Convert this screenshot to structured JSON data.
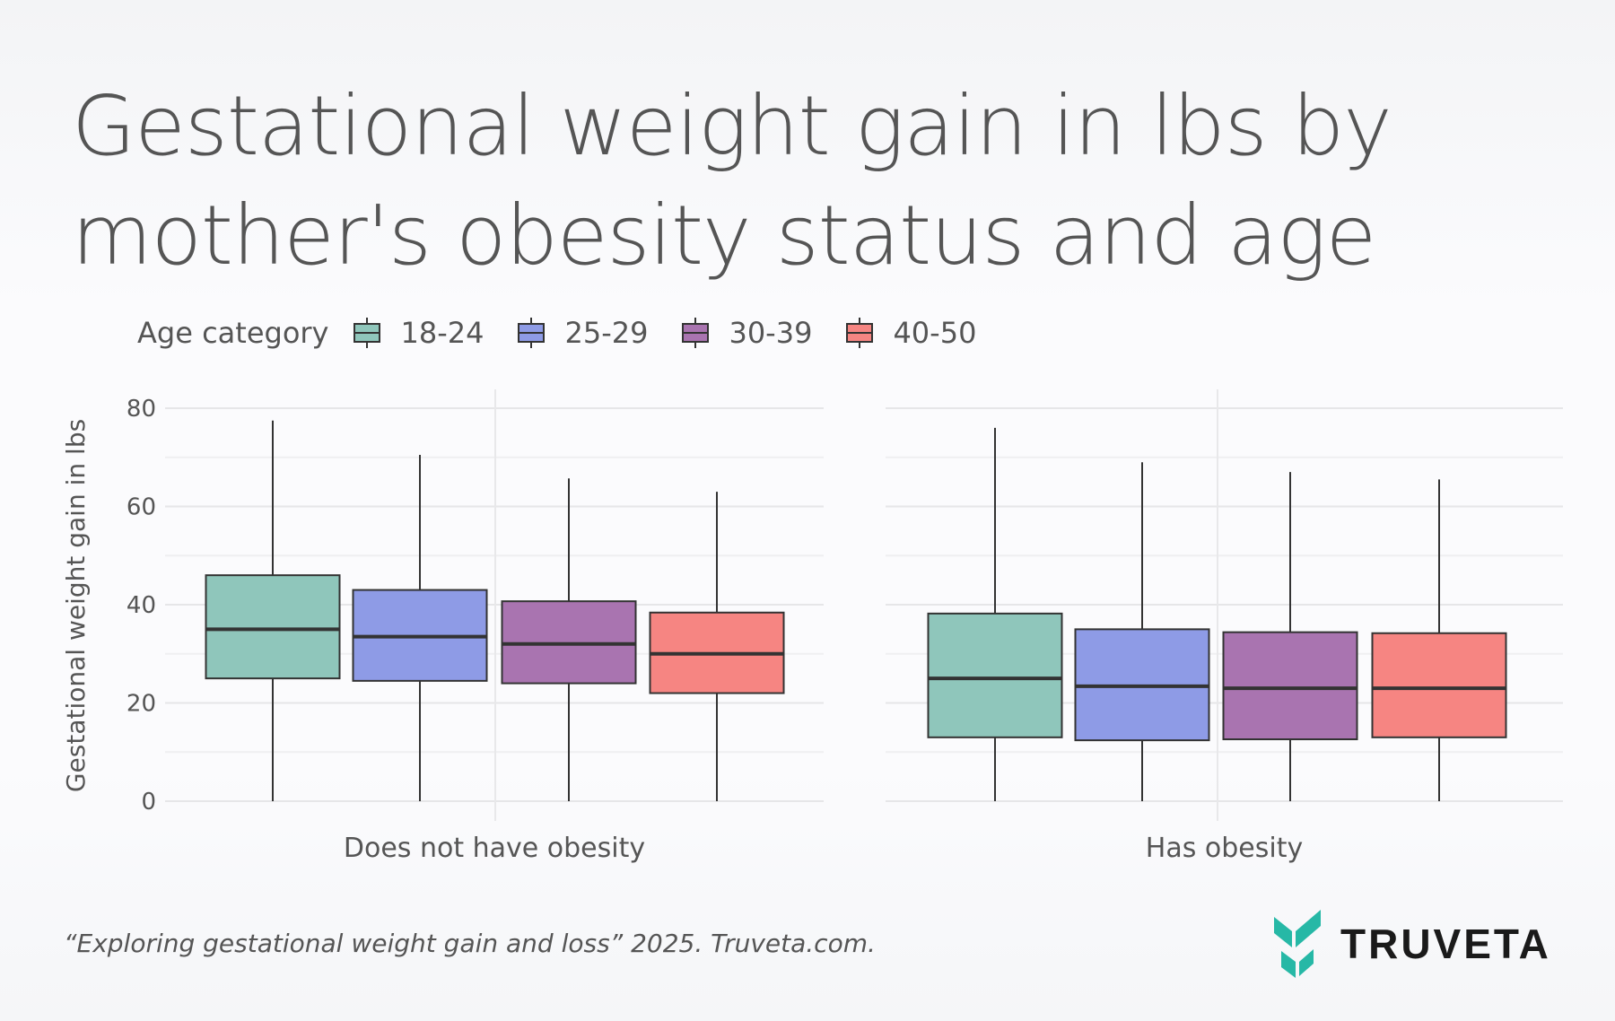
{
  "title_line1": "Gestational weight gain in lbs by",
  "title_line2": "mother's obesity status and age",
  "footer": "“Exploring gestational weight gain and loss” 2025. Truveta.com.",
  "logo_text": "TRUVETA",
  "colors": {
    "18-24": "#8fc6bb",
    "25-29": "#8e9be6",
    "30-39": "#a974b0",
    "40-50": "#f68582",
    "brand": "#26b8a6"
  },
  "chart_data": {
    "type": "box",
    "ylabel": "Gestational weight gain in lbs",
    "ylim": [
      0,
      80
    ],
    "yticks": [
      0,
      20,
      40,
      60,
      80
    ],
    "legend_title": "Age category",
    "legend_placement": "top-left",
    "groups": [
      "18-24",
      "25-29",
      "30-39",
      "40-50"
    ],
    "panels": [
      {
        "label": "Does not have obesity",
        "boxes": [
          {
            "group": "18-24",
            "min": 0,
            "q1": 25,
            "median": 35,
            "q3": 46,
            "max": 77.5
          },
          {
            "group": "25-29",
            "min": 0,
            "q1": 24.5,
            "median": 33.5,
            "q3": 43,
            "max": 70.5
          },
          {
            "group": "30-39",
            "min": 0,
            "q1": 24,
            "median": 32,
            "q3": 40.7,
            "max": 65.7
          },
          {
            "group": "40-50",
            "min": 0,
            "q1": 22,
            "median": 30,
            "q3": 38.4,
            "max": 63
          }
        ]
      },
      {
        "label": "Has obesity",
        "boxes": [
          {
            "group": "18-24",
            "min": 0,
            "q1": 13,
            "median": 25,
            "q3": 38.2,
            "max": 76
          },
          {
            "group": "25-29",
            "min": 0,
            "q1": 12.4,
            "median": 23.4,
            "q3": 35,
            "max": 69
          },
          {
            "group": "30-39",
            "min": 0,
            "q1": 12.6,
            "median": 23,
            "q3": 34.4,
            "max": 67
          },
          {
            "group": "40-50",
            "min": 0,
            "q1": 13,
            "median": 23,
            "q3": 34.2,
            "max": 65.5
          }
        ]
      }
    ]
  }
}
